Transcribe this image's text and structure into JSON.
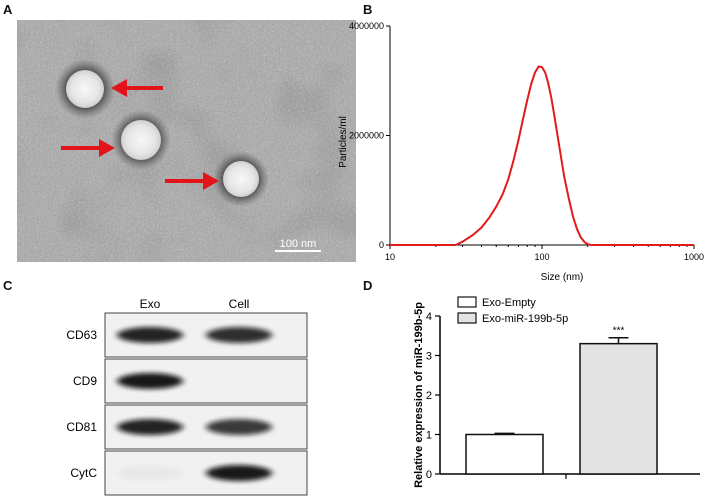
{
  "panels": {
    "a": {
      "letter": "A",
      "scale_bar_label": "100 nm"
    },
    "b": {
      "letter": "B",
      "chart_data": {
        "type": "line",
        "title": "",
        "xlabel": "Size (nm)",
        "ylabel": "Particles/ml",
        "xscale": "log",
        "xlim": [
          10,
          1000
        ],
        "ylim": [
          0,
          4000000
        ],
        "x_ticks": [
          10,
          100,
          1000
        ],
        "y_ticks": [
          0,
          2000000,
          4000000
        ],
        "x_tick_labels": [
          "10",
          "100",
          "1000"
        ],
        "y_tick_labels": [
          "0",
          "2000000",
          "4000000"
        ],
        "line_color": "#e31a1c",
        "series": [
          {
            "x": [
              10,
              20,
              25,
              27,
              30,
              35,
              40,
              45,
              50,
              55,
              60,
              65,
              70,
              75,
              80,
              85,
              90,
              95,
              100,
              105,
              110,
              115,
              120,
              130,
              140,
              150,
              160,
              170,
              180,
              190,
              200,
              210,
              230,
              300,
              500,
              700,
              1000
            ],
            "y": [
              0,
              0,
              0,
              0,
              60000,
              180000,
              320000,
              500000,
              700000,
              920000,
              1200000,
              1550000,
              1920000,
              2300000,
              2650000,
              2950000,
              3150000,
              3260000,
              3250000,
              3150000,
              2950000,
              2700000,
              2400000,
              1800000,
              1250000,
              850000,
              520000,
              290000,
              140000,
              55000,
              15000,
              0,
              0,
              0,
              0,
              0,
              0
            ]
          }
        ]
      }
    },
    "c": {
      "letter": "C",
      "columns": [
        "Exo",
        "Cell"
      ],
      "rows": [
        {
          "label": "CD63",
          "bands": [
            0.9,
            0.85
          ]
        },
        {
          "label": "CD9",
          "bands": [
            0.95,
            0.0
          ]
        },
        {
          "label": "CD81",
          "bands": [
            0.9,
            0.8
          ]
        },
        {
          "label": "CytC",
          "bands": [
            0.03,
            0.95
          ]
        }
      ]
    },
    "d": {
      "letter": "D",
      "chart_data": {
        "type": "bar",
        "title": "",
        "ylabel": "Relative expression of miR-199b-5p",
        "xlabel": "",
        "ylim": [
          0,
          4
        ],
        "y_ticks": [
          0,
          1,
          2,
          3,
          4
        ],
        "y_tick_labels": [
          "0",
          "1",
          "2",
          "3",
          "4"
        ],
        "categories": [
          "Exo-Empty",
          "Exo-miR-199b-5p"
        ],
        "values": [
          1.0,
          3.3
        ],
        "errors": [
          0.03,
          0.15
        ],
        "colors": [
          "#ffffff",
          "#e3e3e3"
        ],
        "legend": [
          "Exo-Empty",
          "Exo-miR-199b-5p"
        ],
        "legend_position": "top-left",
        "significance": [
          "",
          "***"
        ]
      }
    }
  }
}
